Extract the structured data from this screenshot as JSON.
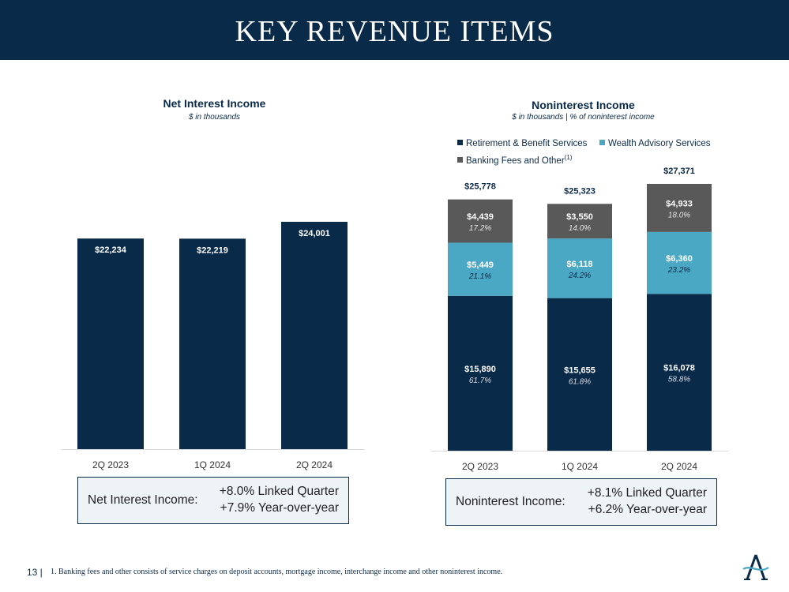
{
  "header": {
    "title": "KEY REVENUE ITEMS"
  },
  "colors": {
    "navy": "#0a2a4a",
    "teal": "#4aa8c4",
    "gray": "#595959"
  },
  "charts": {
    "nii": {
      "title": "Net Interest Income",
      "subtitle": "$ in thousands"
    },
    "nonint": {
      "title": "Noninterest Income",
      "subtitle": "$ in thousands | % of noninterest income"
    }
  },
  "legend": {
    "retirement": "Retirement & Benefit Services",
    "wealth": "Wealth Advisory Services",
    "banking": "Banking Fees and Other",
    "banking_sup": "(1)"
  },
  "chart_data": [
    {
      "type": "bar",
      "title": "Net Interest Income",
      "subtitle": "$ in thousands",
      "categories": [
        "2Q 2023",
        "1Q 2024",
        "2Q 2024"
      ],
      "values": [
        22234,
        22219,
        24001
      ],
      "labels": [
        "$22,234",
        "$22,219",
        "$24,001"
      ],
      "ylim": [
        0,
        27500
      ]
    },
    {
      "type": "bar",
      "stacked": true,
      "title": "Noninterest Income",
      "subtitle": "$ in thousands | % of noninterest income",
      "categories": [
        "2Q 2023",
        "1Q 2024",
        "2Q 2024"
      ],
      "series": [
        {
          "name": "Retirement & Benefit Services",
          "values": [
            15890,
            15655,
            16078
          ],
          "labels": [
            "$15,890",
            "$15,655",
            "$16,078"
          ],
          "pct": [
            "61.7%",
            "61.8%",
            "58.8%"
          ]
        },
        {
          "name": "Wealth Advisory Services",
          "values": [
            5449,
            6118,
            6360
          ],
          "labels": [
            "$5,449",
            "$6,118",
            "$6,360"
          ],
          "pct": [
            "21.1%",
            "24.2%",
            "23.2%"
          ]
        },
        {
          "name": "Banking Fees and Other",
          "values": [
            4439,
            3550,
            4933
          ],
          "labels": [
            "$4,439",
            "$3,550",
            "$4,933"
          ],
          "pct": [
            "17.2%",
            "14.0%",
            "18.0%"
          ]
        }
      ],
      "totals": [
        "$25,778",
        "$25,323",
        "$27,371"
      ],
      "ylim": [
        0,
        27500
      ]
    }
  ],
  "summaries": {
    "nii": {
      "label": "Net Interest Income:",
      "line1": "+8.0% Linked Quarter",
      "line2": "+7.9% Year-over-year"
    },
    "nonint": {
      "label": "Noninterest Income:",
      "line1": "+8.1% Linked Quarter",
      "line2": "+6.2% Year-over-year"
    }
  },
  "footer": {
    "page": "13 |",
    "note": "1. Banking fees and other consists of service charges on deposit accounts, mortgage income, interchange income and other noninterest income."
  }
}
